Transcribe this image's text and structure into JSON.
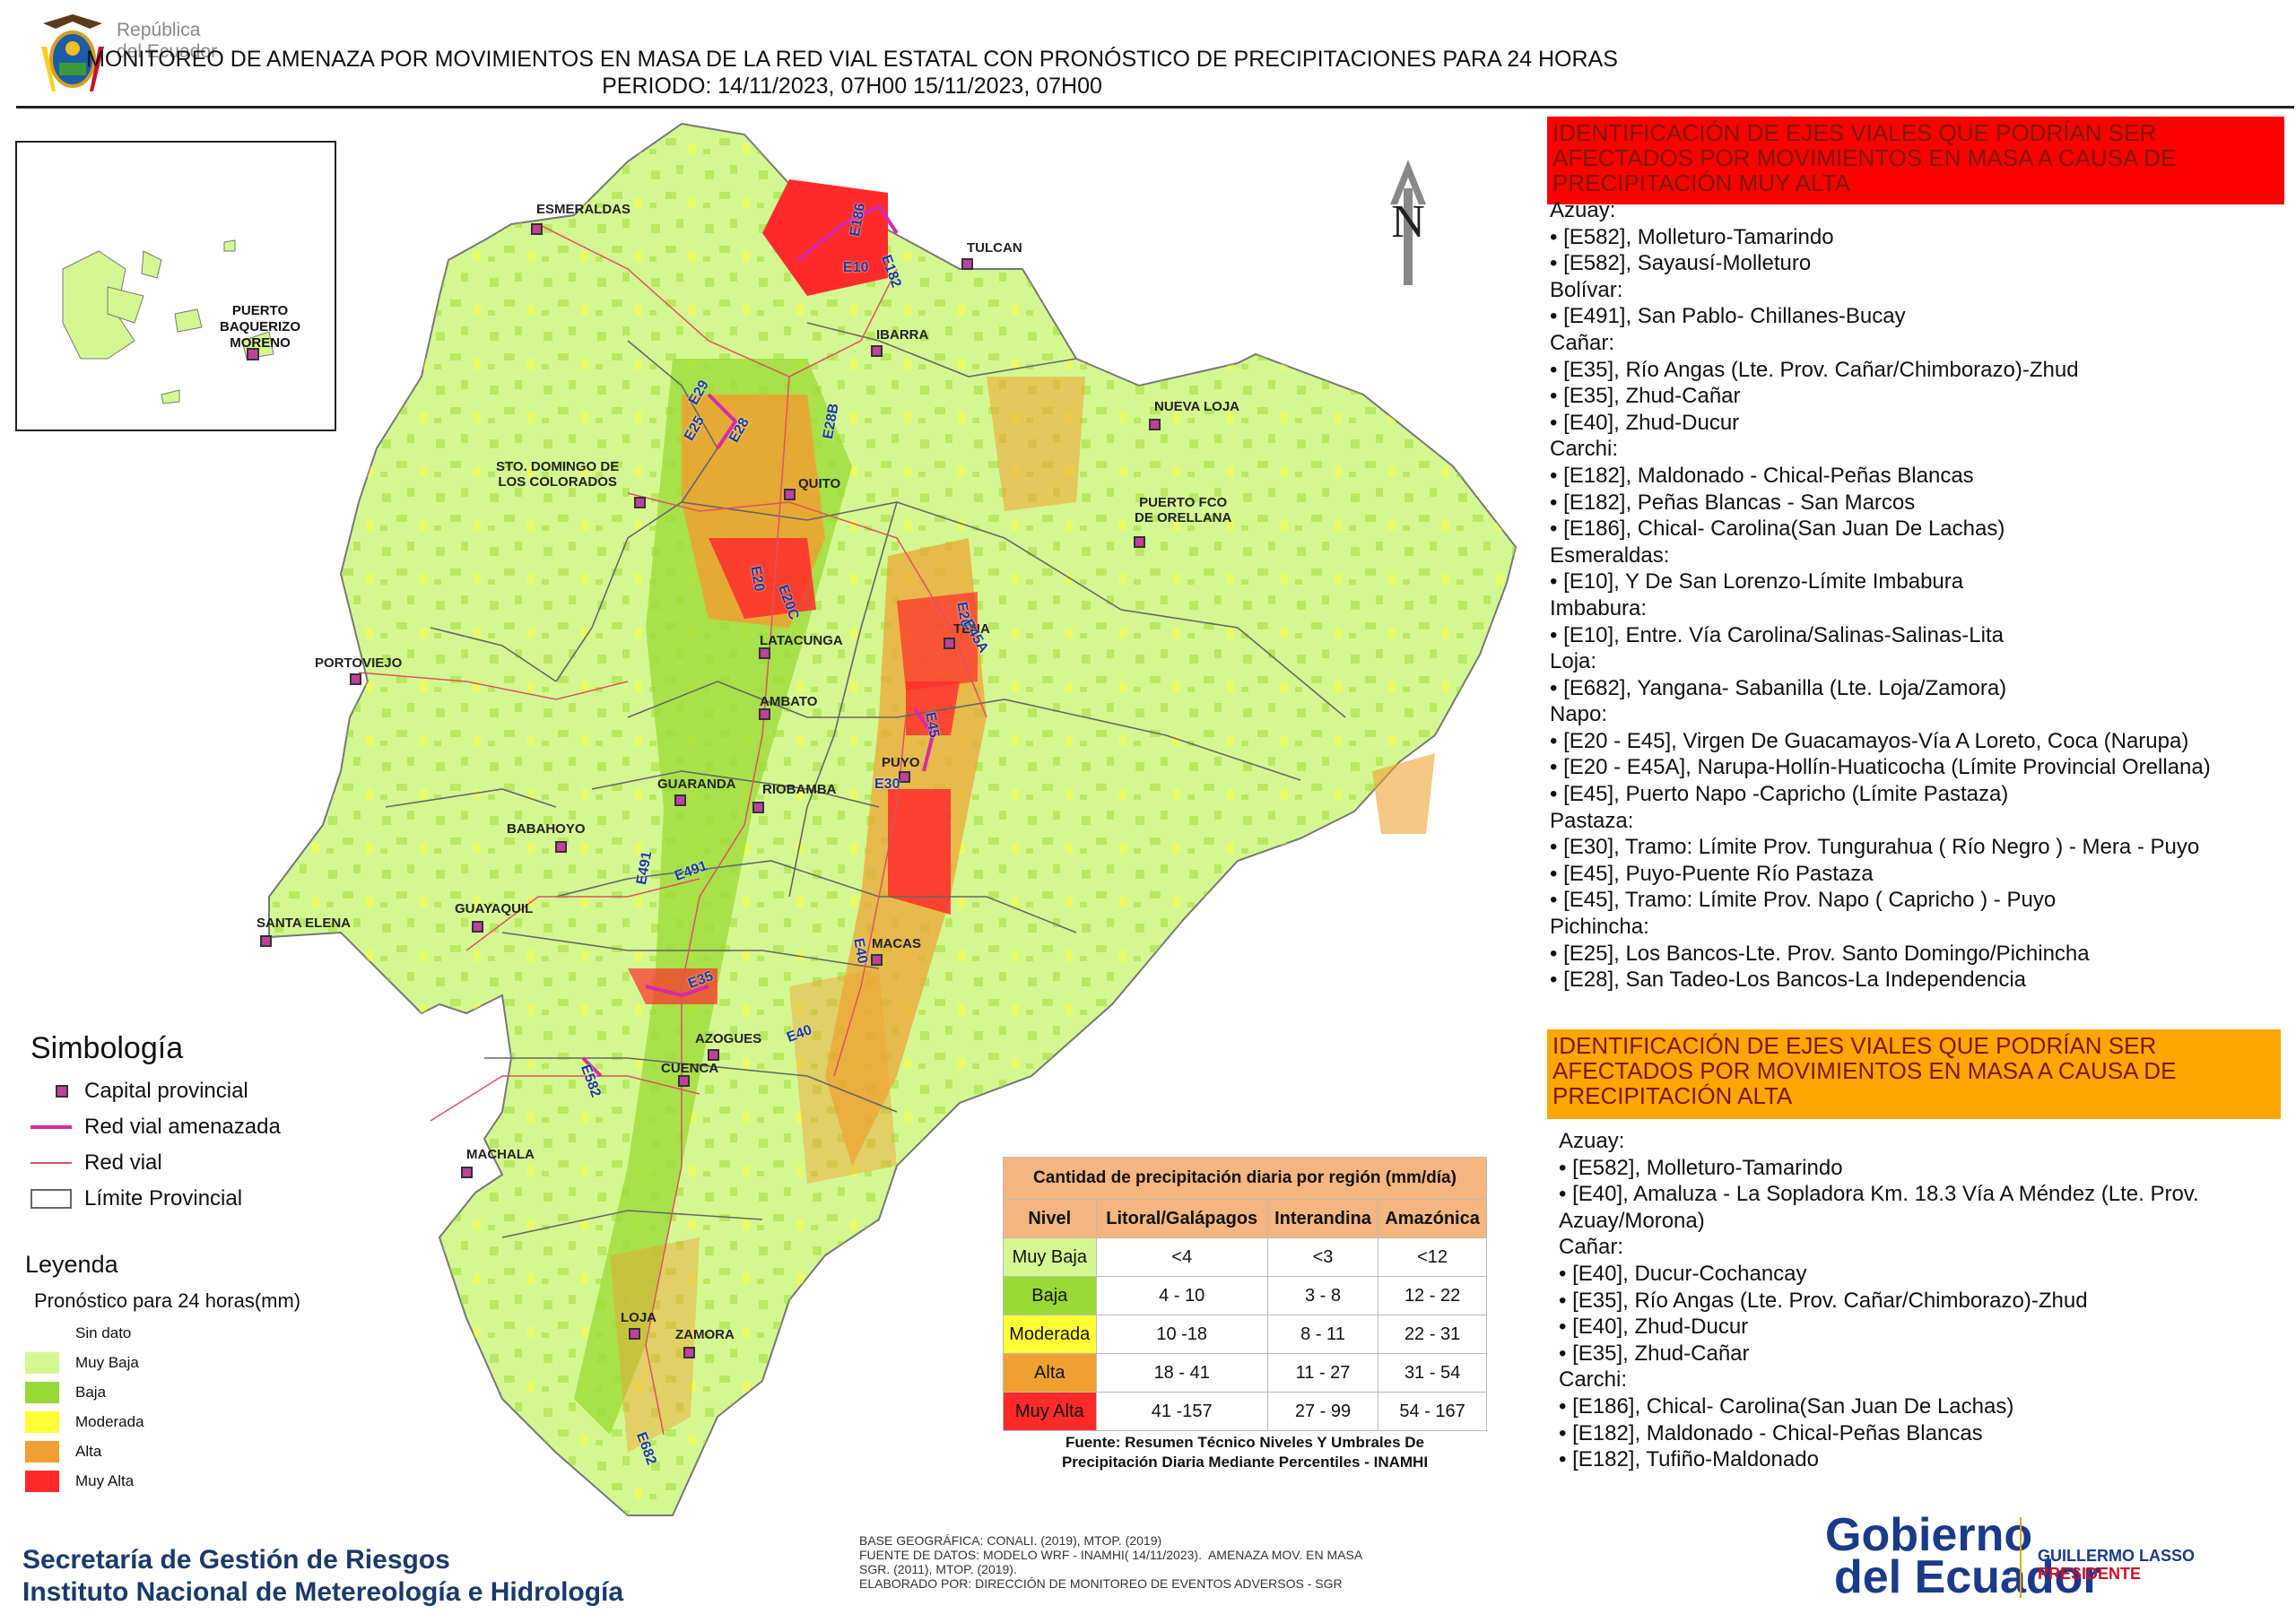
{
  "header": {
    "logo_text": "República\ndel Ecuador",
    "title_line1": "MONITOREO DE AMENAZA POR MOVIMIENTOS EN MASA DE LA RED VIAL  ESTATAL  CON PRONÓSTICO  DE  PRECIPITACIONES PARA 24 HORAS",
    "title_line2": "PERIODO: 14/11/2023, 07H00 15/11/2023, 07H00"
  },
  "map": {
    "north_label": "N",
    "colors": {
      "muy_baja": "#d4f891",
      "baja": "#99d934",
      "moderada": "#ffff33",
      "alta": "#f0a030",
      "muy_alta": "#ff2b2b",
      "road": "#d62aa8",
      "boundary": "#666666"
    },
    "inset_label": "PUERTO\nBAQUERIZO\nMORENO",
    "cities": [
      "ESMERALDAS",
      "TULCAN",
      "IBARRA",
      "NUEVA LOJA",
      "STO. DOMINGO DE\nLOS COLORADOS",
      "QUITO",
      "PUERTO FCO\nDE ORELLANA",
      "LATACUNGA",
      "TENA",
      "PORTOVIEJO",
      "AMBATO",
      "PUYO",
      "GUARANDA",
      "RIOBAMBA",
      "BABAHOYO",
      "GUAYAQUIL",
      "SANTA ELENA",
      "MACAS",
      "AZOGUES",
      "CUENCA",
      "MACHALA",
      "LOJA",
      "ZAMORA"
    ],
    "road_labels": [
      "E186",
      "E182",
      "E10",
      "E29",
      "E25",
      "E28",
      "E28B",
      "E20",
      "E20C",
      "E20",
      "E45A",
      "E45",
      "E30",
      "E491",
      "E491",
      "E35",
      "E40",
      "E582",
      "E40",
      "E682"
    ]
  },
  "simbologia": {
    "title": "Simbología",
    "items": [
      "Capital provincial",
      "Red vial amenazada",
      "Red vial",
      "Límite Provincial"
    ]
  },
  "leyenda": {
    "title": "Leyenda",
    "subtitle": "Pronóstico para 24 horas(mm)",
    "items": [
      {
        "label": "Sin dato",
        "color": "#ffffff"
      },
      {
        "label": "Muy Baja",
        "color": "#d4f891"
      },
      {
        "label": "Baja",
        "color": "#99d934"
      },
      {
        "label": "Moderada",
        "color": "#ffff33"
      },
      {
        "label": "Alta",
        "color": "#f0a030"
      },
      {
        "label": "Muy Alta",
        "color": "#ff2b2b"
      }
    ]
  },
  "precip_table": {
    "caption": "Cantidad de precipitación diaria por región (mm/día)",
    "headers": [
      "Nivel",
      "Litoral/Galápagos",
      "Interandina",
      "Amazónica"
    ],
    "rows": [
      {
        "nivel": "Muy Baja",
        "color": "#d4f891",
        "litoral": "<4",
        "interandina": "<3",
        "amazonica": "<12"
      },
      {
        "nivel": "Baja",
        "color": "#99d934",
        "litoral": "4 - 10",
        "interandina": "3 - 8",
        "amazonica": "12 - 22"
      },
      {
        "nivel": "Moderada",
        "color": "#ffff33",
        "litoral": "10 -18",
        "interandina": "8 - 11",
        "amazonica": "22 - 31"
      },
      {
        "nivel": "Alta",
        "color": "#f0a030",
        "litoral": "18 - 41",
        "interandina": "11 - 27",
        "amazonica": "31 - 54"
      },
      {
        "nivel": "Muy Alta",
        "color": "#ff2b2b",
        "litoral": "41 -157",
        "interandina": "27 - 99",
        "amazonica": "54 - 167"
      }
    ],
    "fuente": "Fuente: Resumen Técnico Niveles Y Umbrales De\nPrecipitación Diaria Mediante Percentiles - INAMHI"
  },
  "panel_muy_alta": {
    "heading": "IDENTIFICACIÓN DE EJES VIALES QUE PODRÍAN SER AFECTADOS POR MOVIMIENTOS EN MASA A CAUSA DE PRECIPITACIÓN MUY ALTA",
    "lines": [
      "Azuay:",
      "• [E582], Molleturo-Tamarindo",
      "• [E582], Sayausí-Molleturo",
      "Bolívar:",
      "• [E491], San Pablo- Chillanes-Bucay",
      "Cañar:",
      "• [E35], Río Angas (Lte. Prov. Cañar/Chimborazo)-Zhud",
      "• [E35], Zhud-Cañar",
      "• [E40], Zhud-Ducur",
      "Carchi:",
      "• [E182], Maldonado - Chical-Peñas Blancas",
      "• [E182], Peñas Blancas - San Marcos",
      "• [E186], Chical- Carolina(San Juan De Lachas)",
      "Esmeraldas:",
      "• [E10], Y De San Lorenzo-Límite Imbabura",
      "Imbabura:",
      "• [E10], Entre. Vía Carolina/Salinas-Salinas-Lita",
      "Loja:",
      "• [E682], Yangana- Sabanilla (Lte. Loja/Zamora)",
      "Napo:",
      "• [E20 - E45], Virgen De Guacamayos-Vía A Loreto, Coca (Narupa)",
      "• [E20 - E45A], Narupa-Hollín-Huaticocha (Límite Provincial Orellana)",
      "• [E45], Puerto Napo -Capricho (Límite Pastaza)",
      "Pastaza:",
      "• [E30], Tramo: Límite Prov. Tungurahua ( Río Negro ) - Mera - Puyo",
      "• [E45], Puyo-Puente Río Pastaza",
      "• [E45], Tramo: Límite Prov. Napo ( Capricho ) - Puyo",
      "Pichincha:",
      "• [E25], Los Bancos-Lte. Prov. Santo Domingo/Pichincha",
      "• [E28], San Tadeo-Los Bancos-La Independencia"
    ]
  },
  "panel_alta": {
    "heading": "IDENTIFICACIÓN DE EJES VIALES QUE PODRÍAN SER AFECTADOS POR MOVIMIENTOS EN MASA A CAUSA DE PRECIPITACIÓN  ALTA",
    "lines": [
      "Azuay:",
      "• [E582], Molleturo-Tamarindo",
      "• [E40], Amaluza - La Sopladora Km. 18.3 Vía A Méndez (Lte. Prov.",
      "Azuay/Morona)",
      "Cañar:",
      "• [E40], Ducur-Cochancay",
      "• [E35], Río Angas (Lte. Prov. Cañar/Chimborazo)-Zhud",
      "• [E40], Zhud-Ducur",
      "• [E35], Zhud-Cañar",
      "Carchi:",
      "• [E186], Chical- Carolina(San Juan De Lachas)",
      "• [E182], Maldonado - Chical-Peñas Blancas",
      "• [E182], Tufiño-Maldonado"
    ]
  },
  "footer": {
    "org_line1": "Secretaría de Gestión de Riesgos",
    "org_line2": "Instituto Nacional de Metereología e Hidrología",
    "base_text": "BASE GEOGRÁFICA: CONALI. (2019), MTOP. (2019)\nFUENTE DE DATOS: MODELO WRF - INAMHI( 14/11/2023).  AMENAZA MOV. EN MASA\nSGR. (2011), MTOP. (2019).\nELABORADO POR: DIRECCIÓN DE MONITOREO DE EVENTOS ADVERSOS - SGR",
    "gob_line1": "Gobierno",
    "gob_line2": "del Ecuador",
    "pres_name": "GUILLERMO LASSO",
    "pres_title": "PRESIDENTE"
  }
}
